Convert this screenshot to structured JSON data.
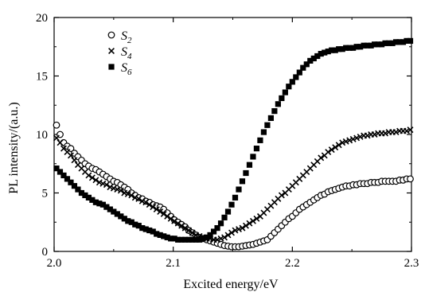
{
  "chart_data": {
    "type": "scatter",
    "title": "",
    "xlabel": "Excited energy/eV",
    "ylabel": "PL intensity/(a.u.)",
    "xlim": [
      2.0,
      2.3
    ],
    "ylim": [
      0,
      20
    ],
    "xticks": [
      2.0,
      2.1,
      2.2,
      2.3
    ],
    "xtick_labels": [
      "2.0",
      "2.1",
      "2.2",
      "2.3"
    ],
    "yticks": [
      0,
      5,
      10,
      15,
      20
    ],
    "ytick_labels": [
      "0",
      "5",
      "10",
      "15",
      "20"
    ],
    "grid": false,
    "legend_position": "top-left",
    "series": [
      {
        "name": "S2",
        "label_main": "S",
        "label_sub": "2",
        "marker": "open-circle",
        "color": "#000000",
        "x": [
          2.002,
          2.005,
          2.008,
          2.011,
          2.014,
          2.017,
          2.02,
          2.023,
          2.026,
          2.029,
          2.032,
          2.035,
          2.038,
          2.041,
          2.044,
          2.047,
          2.05,
          2.053,
          2.056,
          2.059,
          2.062,
          2.065,
          2.068,
          2.071,
          2.074,
          2.077,
          2.08,
          2.083,
          2.086,
          2.089,
          2.092,
          2.095,
          2.098,
          2.101,
          2.104,
          2.107,
          2.11,
          2.113,
          2.116,
          2.119,
          2.122,
          2.125,
          2.128,
          2.131,
          2.134,
          2.137,
          2.14,
          2.143,
          2.146,
          2.149,
          2.152,
          2.155,
          2.158,
          2.161,
          2.164,
          2.167,
          2.17,
          2.173,
          2.176,
          2.179,
          2.182,
          2.185,
          2.188,
          2.191,
          2.194,
          2.197,
          2.2,
          2.203,
          2.206,
          2.209,
          2.212,
          2.215,
          2.218,
          2.221,
          2.224,
          2.227,
          2.23,
          2.233,
          2.236,
          2.239,
          2.242,
          2.245,
          2.248,
          2.251,
          2.254,
          2.257,
          2.26,
          2.263,
          2.266,
          2.269,
          2.272,
          2.275,
          2.278,
          2.281,
          2.284,
          2.287,
          2.29,
          2.293,
          2.296,
          2.299
        ],
        "y": [
          10.8,
          10.0,
          9.3,
          9.0,
          8.8,
          8.4,
          8.1,
          7.8,
          7.5,
          7.3,
          7.1,
          7.0,
          6.8,
          6.6,
          6.4,
          6.2,
          6.0,
          5.9,
          5.7,
          5.5,
          5.3,
          5.0,
          4.8,
          4.6,
          4.5,
          4.3,
          4.2,
          4.0,
          3.9,
          3.8,
          3.6,
          3.3,
          3.0,
          2.7,
          2.5,
          2.3,
          2.1,
          1.8,
          1.6,
          1.4,
          1.2,
          1.1,
          1.0,
          0.9,
          0.8,
          0.7,
          0.6,
          0.5,
          0.45,
          0.4,
          0.4,
          0.4,
          0.45,
          0.5,
          0.55,
          0.6,
          0.7,
          0.8,
          0.9,
          1.0,
          1.3,
          1.6,
          1.9,
          2.2,
          2.5,
          2.8,
          3.0,
          3.3,
          3.6,
          3.8,
          4.0,
          4.2,
          4.4,
          4.6,
          4.8,
          4.9,
          5.1,
          5.2,
          5.3,
          5.4,
          5.5,
          5.6,
          5.6,
          5.7,
          5.7,
          5.8,
          5.8,
          5.8,
          5.9,
          5.9,
          5.9,
          6.0,
          6.0,
          6.0,
          6.0,
          6.0,
          6.1,
          6.1,
          6.2,
          6.2
        ]
      },
      {
        "name": "S4",
        "label_main": "S",
        "label_sub": "4",
        "marker": "x-cross",
        "color": "#000000",
        "x": [
          2.002,
          2.005,
          2.008,
          2.011,
          2.014,
          2.017,
          2.02,
          2.023,
          2.026,
          2.029,
          2.032,
          2.035,
          2.038,
          2.041,
          2.044,
          2.047,
          2.05,
          2.053,
          2.056,
          2.059,
          2.062,
          2.065,
          2.068,
          2.071,
          2.074,
          2.077,
          2.08,
          2.083,
          2.086,
          2.089,
          2.092,
          2.095,
          2.098,
          2.101,
          2.104,
          2.107,
          2.11,
          2.113,
          2.116,
          2.119,
          2.122,
          2.125,
          2.128,
          2.131,
          2.134,
          2.137,
          2.14,
          2.143,
          2.146,
          2.149,
          2.152,
          2.155,
          2.158,
          2.161,
          2.164,
          2.167,
          2.17,
          2.173,
          2.176,
          2.179,
          2.182,
          2.185,
          2.188,
          2.191,
          2.194,
          2.197,
          2.2,
          2.203,
          2.206,
          2.209,
          2.212,
          2.215,
          2.218,
          2.221,
          2.224,
          2.227,
          2.23,
          2.233,
          2.236,
          2.239,
          2.242,
          2.245,
          2.248,
          2.251,
          2.254,
          2.257,
          2.26,
          2.263,
          2.266,
          2.269,
          2.272,
          2.275,
          2.278,
          2.281,
          2.284,
          2.287,
          2.29,
          2.293,
          2.296,
          2.299
        ],
        "y": [
          9.7,
          9.3,
          8.8,
          8.5,
          8.2,
          7.8,
          7.4,
          7.1,
          6.8,
          6.5,
          6.3,
          6.1,
          5.9,
          5.8,
          5.7,
          5.5,
          5.4,
          5.3,
          5.2,
          5.0,
          4.9,
          4.8,
          4.6,
          4.5,
          4.3,
          4.2,
          4.0,
          3.8,
          3.6,
          3.4,
          3.2,
          3.0,
          2.8,
          2.6,
          2.4,
          2.2,
          2.0,
          1.8,
          1.6,
          1.4,
          1.3,
          1.2,
          1.1,
          1.1,
          1.0,
          1.0,
          1.1,
          1.2,
          1.4,
          1.6,
          1.8,
          1.9,
          2.0,
          2.2,
          2.4,
          2.6,
          2.8,
          3.0,
          3.3,
          3.6,
          3.9,
          4.2,
          4.5,
          4.8,
          5.0,
          5.3,
          5.6,
          5.9,
          6.2,
          6.5,
          6.8,
          7.1,
          7.4,
          7.7,
          8.0,
          8.2,
          8.5,
          8.7,
          8.9,
          9.1,
          9.3,
          9.4,
          9.5,
          9.6,
          9.7,
          9.8,
          9.9,
          9.9,
          10.0,
          10.0,
          10.1,
          10.1,
          10.1,
          10.2,
          10.2,
          10.2,
          10.3,
          10.3,
          10.3,
          10.4
        ]
      },
      {
        "name": "S6",
        "label_main": "S",
        "label_sub": "6",
        "marker": "filled-square",
        "color": "#000000",
        "x": [
          2.002,
          2.005,
          2.008,
          2.011,
          2.014,
          2.017,
          2.02,
          2.023,
          2.026,
          2.029,
          2.032,
          2.035,
          2.038,
          2.041,
          2.044,
          2.047,
          2.05,
          2.053,
          2.056,
          2.059,
          2.062,
          2.065,
          2.068,
          2.071,
          2.074,
          2.077,
          2.08,
          2.083,
          2.086,
          2.089,
          2.092,
          2.095,
          2.098,
          2.101,
          2.104,
          2.107,
          2.11,
          2.113,
          2.116,
          2.119,
          2.122,
          2.125,
          2.128,
          2.131,
          2.134,
          2.137,
          2.14,
          2.143,
          2.146,
          2.149,
          2.152,
          2.155,
          2.158,
          2.161,
          2.164,
          2.167,
          2.17,
          2.173,
          2.176,
          2.179,
          2.182,
          2.185,
          2.188,
          2.191,
          2.194,
          2.197,
          2.2,
          2.203,
          2.206,
          2.209,
          2.212,
          2.215,
          2.218,
          2.221,
          2.224,
          2.227,
          2.23,
          2.233,
          2.236,
          2.239,
          2.242,
          2.245,
          2.248,
          2.251,
          2.254,
          2.257,
          2.26,
          2.263,
          2.266,
          2.269,
          2.272,
          2.275,
          2.278,
          2.281,
          2.284,
          2.287,
          2.29,
          2.293,
          2.296,
          2.299
        ],
        "y": [
          7.1,
          6.8,
          6.5,
          6.2,
          5.9,
          5.6,
          5.3,
          5.0,
          4.8,
          4.6,
          4.4,
          4.2,
          4.1,
          4.0,
          3.8,
          3.6,
          3.4,
          3.2,
          3.0,
          2.8,
          2.6,
          2.5,
          2.3,
          2.2,
          2.0,
          1.9,
          1.8,
          1.7,
          1.5,
          1.4,
          1.3,
          1.2,
          1.1,
          1.1,
          1.0,
          1.0,
          1.0,
          1.0,
          1.0,
          1.0,
          1.0,
          1.1,
          1.2,
          1.4,
          1.7,
          2.0,
          2.4,
          2.9,
          3.4,
          4.0,
          4.6,
          5.3,
          6.0,
          6.7,
          7.4,
          8.1,
          8.8,
          9.5,
          10.2,
          10.8,
          11.4,
          12.0,
          12.6,
          13.1,
          13.6,
          14.1,
          14.5,
          14.9,
          15.3,
          15.7,
          16.0,
          16.3,
          16.5,
          16.7,
          16.9,
          17.0,
          17.1,
          17.2,
          17.2,
          17.3,
          17.3,
          17.4,
          17.4,
          17.4,
          17.5,
          17.5,
          17.6,
          17.6,
          17.6,
          17.7,
          17.7,
          17.7,
          17.8,
          17.8,
          17.8,
          17.9,
          17.9,
          17.9,
          18.0,
          18.0
        ]
      }
    ]
  }
}
